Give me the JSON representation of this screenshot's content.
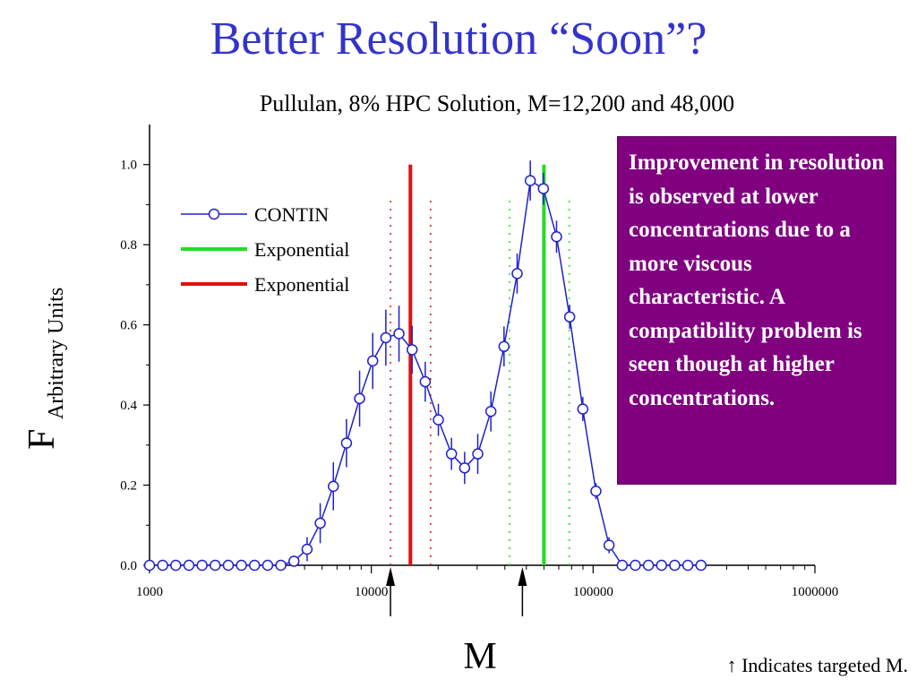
{
  "slide": {
    "title": "Better Resolution “Soon”?",
    "callout": "Improvement in resolution is observed at lower concentrations due to a more viscous characteristic.  A compatibility problem is seen though at higher concentrations.",
    "footnote": "↑ Indicates targeted M."
  },
  "colors": {
    "title": "#3333cc",
    "contin": "#2020cc",
    "green": "#22dd22",
    "red": "#e01010",
    "callout_bg": "#800080"
  },
  "chart_data": {
    "type": "line",
    "title": "Pullulan, 8% HPC Solution, M=12,200 and 48,000",
    "xlabel": "M",
    "ylabel_main": "F",
    "ylabel_sub": "Arbitrary Units",
    "xscale": "log",
    "xlim": [
      1000,
      1000000
    ],
    "ylim": [
      0,
      1.1
    ],
    "x_ticks": [
      1000,
      10000,
      100000,
      1000000
    ],
    "x_tick_labels": [
      "1000",
      "10000",
      "100000",
      "1000000"
    ],
    "y_ticks": [
      0,
      0.2,
      0.4,
      0.6,
      0.8,
      1.0
    ],
    "y_tick_labels": [
      "0.0",
      "0.2",
      "0.4",
      "0.6",
      "0.8",
      "1.0"
    ],
    "legend_position": "upper-left",
    "series": [
      {
        "name": "CONTIN",
        "style": "line-open-circles-errorbars",
        "x": [
          1000,
          1146,
          1313,
          1505,
          1725,
          1977,
          2265,
          2596,
          2975,
          3410,
          3908,
          4478,
          5132,
          5882,
          6741,
          7725,
          8853,
          10146,
          11627,
          13325,
          15271,
          17501,
          20057,
          22986,
          26343,
          30190,
          34599,
          39651,
          45442,
          52078,
          59683,
          68399,
          78387,
          89834,
          102953,
          117987,
          135217,
          154963,
          177593,
          203527,
          233249,
          267311,
          306347
        ],
        "y": [
          0,
          0,
          0,
          0,
          0,
          0,
          0,
          0,
          0,
          0,
          0,
          0.01,
          0.04,
          0.105,
          0.197,
          0.305,
          0.416,
          0.51,
          0.568,
          0.578,
          0.538,
          0.458,
          0.363,
          0.278,
          0.243,
          0.278,
          0.384,
          0.546,
          0.728,
          0.96,
          0.94,
          0.82,
          0.62,
          0.39,
          0.185,
          0.05,
          0,
          0,
          0,
          0,
          0,
          0,
          0
        ],
        "err": [
          0,
          0,
          0,
          0,
          0,
          0,
          0,
          0,
          0,
          0,
          0,
          0,
          0.03,
          0.05,
          0.06,
          0.06,
          0.07,
          0.07,
          0.07,
          0.07,
          0.06,
          0.05,
          0.04,
          0.04,
          0.04,
          0.05,
          0.05,
          0.05,
          0.05,
          0.05,
          0.04,
          0.04,
          0.03,
          0.03,
          0.02,
          0.02,
          0,
          0,
          0,
          0,
          0,
          0,
          0
        ]
      },
      {
        "name": "Exponential",
        "color": "green",
        "peak_x": 60000,
        "peak_y": 1.0,
        "bound_x": [
          42000,
          78000
        ]
      },
      {
        "name": "Exponential",
        "color": "red",
        "peak_x": 15000,
        "peak_y": 1.0,
        "bound_x": [
          12200,
          18500
        ]
      }
    ],
    "target_markers_x": [
      12200,
      48000
    ]
  }
}
